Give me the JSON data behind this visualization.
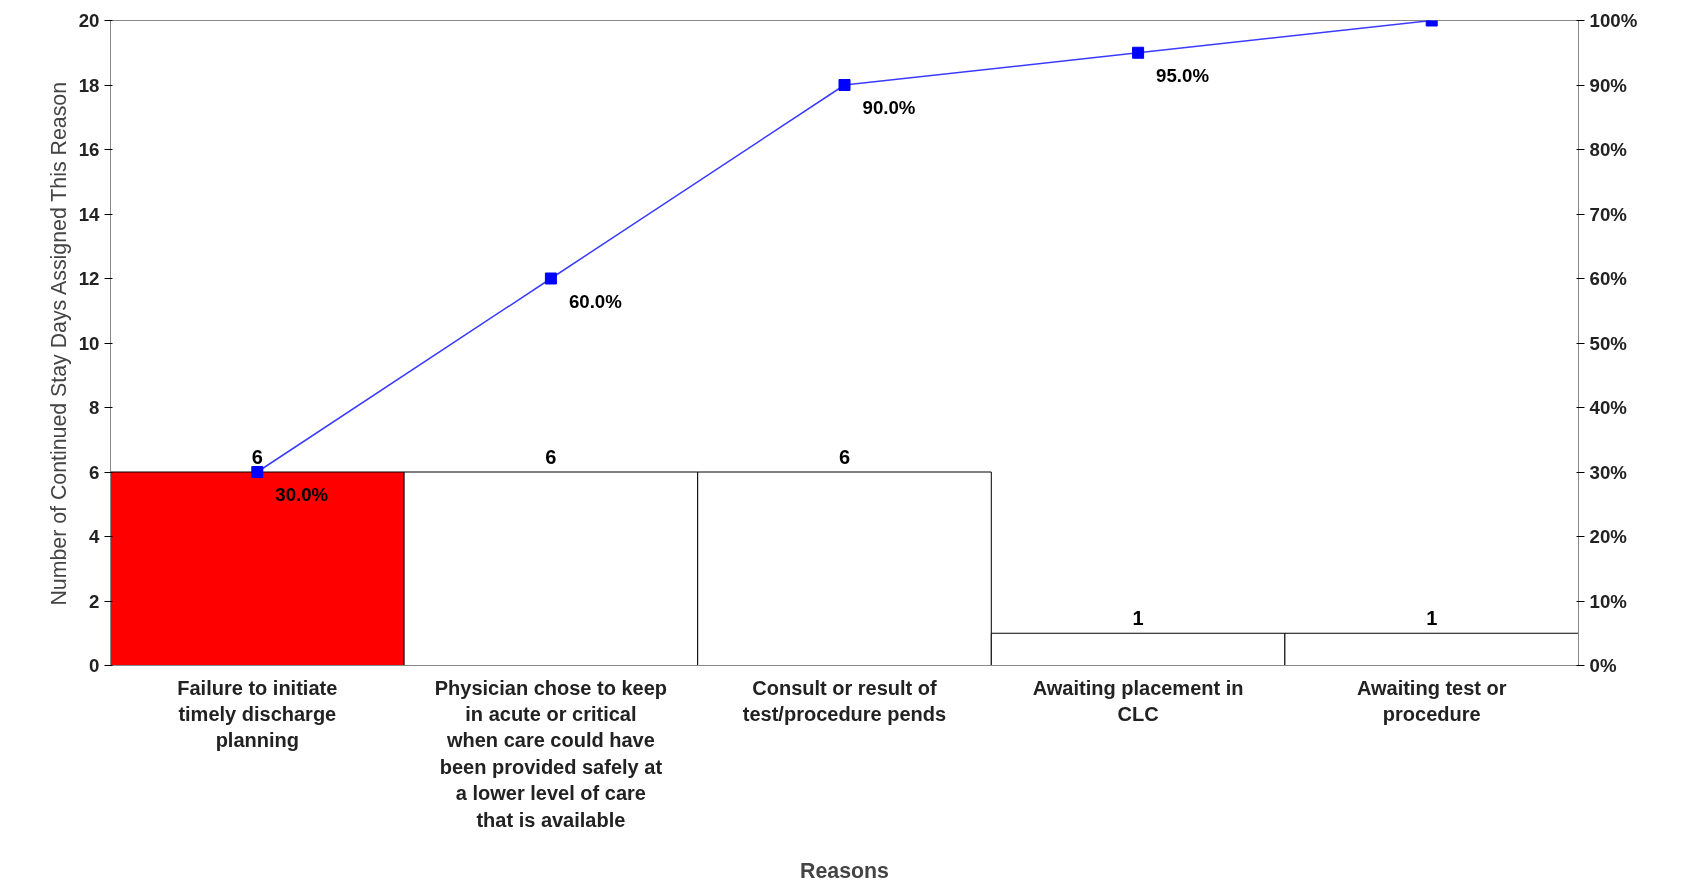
{
  "chart_data": {
    "type": "bar",
    "xlabel": "Reasons",
    "ylabel": "Number of Continued Stay Days Assigned This Reason",
    "categories": [
      "Failure to initiate timely discharge planning",
      "Physician chose to keep in acute or critical when care could have been provided safely at a lower level of care that is available",
      "Consult or result of test/procedure pends",
      "Awaiting placement in CLC",
      "Awaiting test or procedure"
    ],
    "series": [
      {
        "values": [
          6,
          6,
          6,
          1,
          1
        ],
        "colors": [
          "#ff0000",
          "#ffffff",
          "#ffffff",
          "#ffffff",
          "#ffffff"
        ],
        "value_labels": [
          "6",
          "6",
          "6",
          "1",
          "1"
        ]
      },
      {
        "type": "line",
        "axis": "y2",
        "color": "#3b3bff",
        "marker": "square",
        "values": [
          30,
          60,
          90,
          95,
          100
        ],
        "value_labels": [
          "30.0%",
          "60.0%",
          "90.0%",
          "95.0%",
          null
        ]
      }
    ],
    "ylim": [
      0,
      20
    ],
    "yticks": [
      0,
      2,
      4,
      6,
      8,
      10,
      12,
      14,
      16,
      18,
      20
    ],
    "y2lim": [
      0,
      100
    ],
    "y2ticks": [
      {
        "value": 0,
        "label": "0%"
      },
      {
        "value": 10,
        "label": "10%"
      },
      {
        "value": 20,
        "label": "20%"
      },
      {
        "value": 30,
        "label": "30%"
      },
      {
        "value": 40,
        "label": "40%"
      },
      {
        "value": 50,
        "label": "50%"
      },
      {
        "value": 60,
        "label": "60%"
      },
      {
        "value": 70,
        "label": "70%"
      },
      {
        "value": 80,
        "label": "80%"
      },
      {
        "value": 90,
        "label": "90%"
      },
      {
        "value": 100,
        "label": "100%"
      }
    ],
    "grid": false
  }
}
